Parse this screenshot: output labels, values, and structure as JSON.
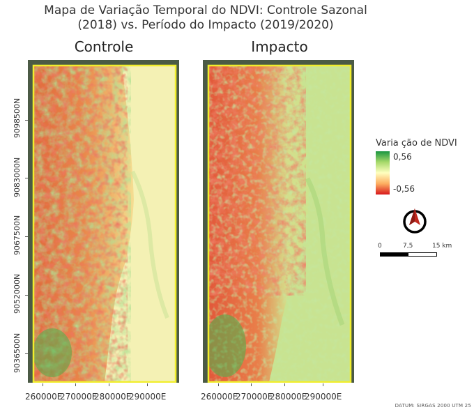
{
  "title_line1": "Mapa de Variação Temporal do NDVI: Controle Sazonal",
  "title_line2": "(2018) vs. Período do Impacto (2019/2020)",
  "panels": [
    {
      "label": "Controle"
    },
    {
      "label": "Impacto"
    }
  ],
  "y_ticks": [
    "9098500N",
    "9083000N",
    "9067500N",
    "9052000N",
    "9036500N"
  ],
  "x_ticks": [
    "260000E",
    "270000E",
    "280000E",
    "290000E"
  ],
  "legend": {
    "title": "Varia ção de NDVI",
    "max_label": "0,56",
    "min_label": "-0,56",
    "colors": [
      "#1a9641",
      "#a6d96a",
      "#ffffbf",
      "#fdae61",
      "#d7191c"
    ]
  },
  "north_arrow": {
    "icon": "north-arrow-icon",
    "color": "#c0281e"
  },
  "scale_bar": {
    "labels": [
      "0",
      "7,5",
      "15 km"
    ]
  },
  "datum": "DATUM: SIRGAS 2000 UTM 25",
  "colors": {
    "frame": "#3d4f7f",
    "aoi_border": "#f1ee2c"
  }
}
